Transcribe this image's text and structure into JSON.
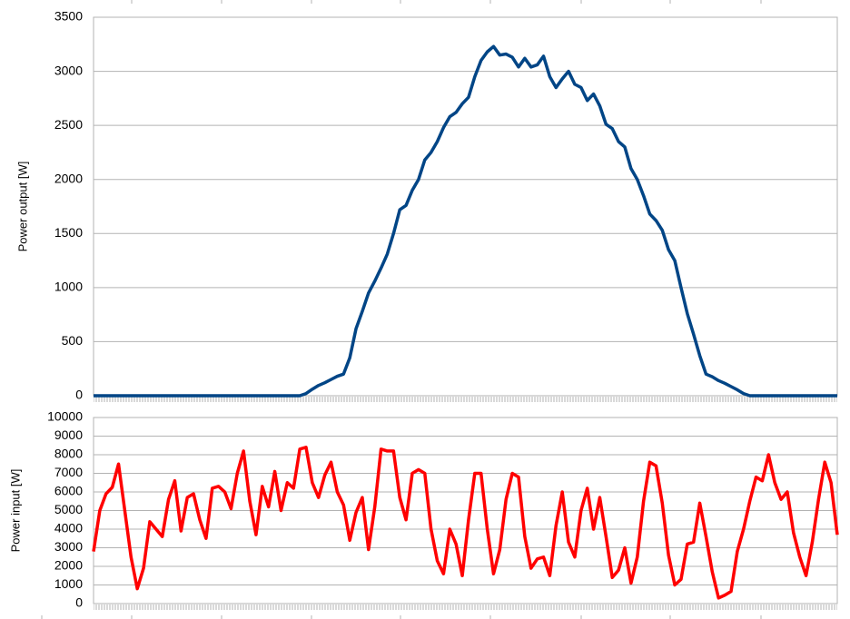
{
  "chart_data": [
    {
      "type": "line",
      "y_label": "Power output [W]",
      "ylim": [
        0,
        3500
      ],
      "yticks": [
        0,
        500,
        1000,
        1500,
        2000,
        2500,
        3000,
        3500
      ],
      "grid": true,
      "series": [
        {
          "color": "#004586",
          "values": [
            0,
            0,
            0,
            0,
            0,
            0,
            0,
            0,
            0,
            0,
            0,
            0,
            0,
            0,
            0,
            0,
            0,
            0,
            0,
            0,
            0,
            0,
            0,
            0,
            0,
            0,
            0,
            0,
            0,
            0,
            0,
            0,
            0,
            0,
            20,
            60,
            95,
            120,
            150,
            180,
            200,
            350,
            620,
            780,
            950,
            1060,
            1180,
            1310,
            1500,
            1720,
            1760,
            1900,
            2000,
            2180,
            2250,
            2350,
            2480,
            2580,
            2620,
            2700,
            2760,
            2950,
            3100,
            3180,
            3230,
            3150,
            3160,
            3130,
            3040,
            3120,
            3040,
            3060,
            3140,
            2950,
            2850,
            2930,
            3000,
            2880,
            2850,
            2730,
            2790,
            2680,
            2510,
            2470,
            2350,
            2300,
            2100,
            2000,
            1850,
            1680,
            1620,
            1530,
            1350,
            1250,
            1000,
            760,
            570,
            370,
            200,
            175,
            140,
            115,
            85,
            55,
            20,
            0,
            0,
            0,
            0,
            0,
            0,
            0,
            0,
            0,
            0,
            0,
            0,
            0,
            0,
            0
          ]
        }
      ]
    },
    {
      "type": "line",
      "y_label": "Power input [W]",
      "ylim": [
        0,
        10000
      ],
      "yticks": [
        0,
        1000,
        2000,
        3000,
        4000,
        5000,
        6000,
        7000,
        8000,
        9000,
        10000
      ],
      "grid": true,
      "series": [
        {
          "color": "#ff0000",
          "values": [
            2800,
            5000,
            5900,
            6250,
            7500,
            5000,
            2500,
            800,
            1900,
            4400,
            4000,
            3600,
            5600,
            6600,
            3900,
            5700,
            5900,
            4500,
            3500,
            6200,
            6300,
            6000,
            5100,
            7000,
            8200,
            5500,
            3700,
            6300,
            5200,
            7100,
            5000,
            6500,
            6200,
            8300,
            8400,
            6500,
            5700,
            6900,
            7600,
            6000,
            5300,
            3400,
            4900,
            5700,
            2900,
            5200,
            8300,
            8200,
            8200,
            5700,
            4500,
            7000,
            7200,
            7000,
            4000,
            2300,
            1600,
            4000,
            3200,
            1500,
            4500,
            7000,
            7000,
            4000,
            1600,
            2900,
            5600,
            7000,
            6800,
            3600,
            1900,
            2400,
            2500,
            1500,
            4200,
            6000,
            3300,
            2500,
            5000,
            6200,
            4000,
            5700,
            3600,
            1400,
            1800,
            3000,
            1100,
            2500,
            5500,
            7600,
            7400,
            5400,
            2600,
            1000,
            1300,
            3200,
            3300,
            5400,
            3600,
            1700,
            300,
            450,
            650,
            2800,
            4000,
            5500,
            6800,
            6600,
            8000,
            6500,
            5600,
            6000,
            3800,
            2500,
            1500,
            3300,
            5600,
            7600,
            6500,
            3700
          ]
        }
      ]
    }
  ]
}
